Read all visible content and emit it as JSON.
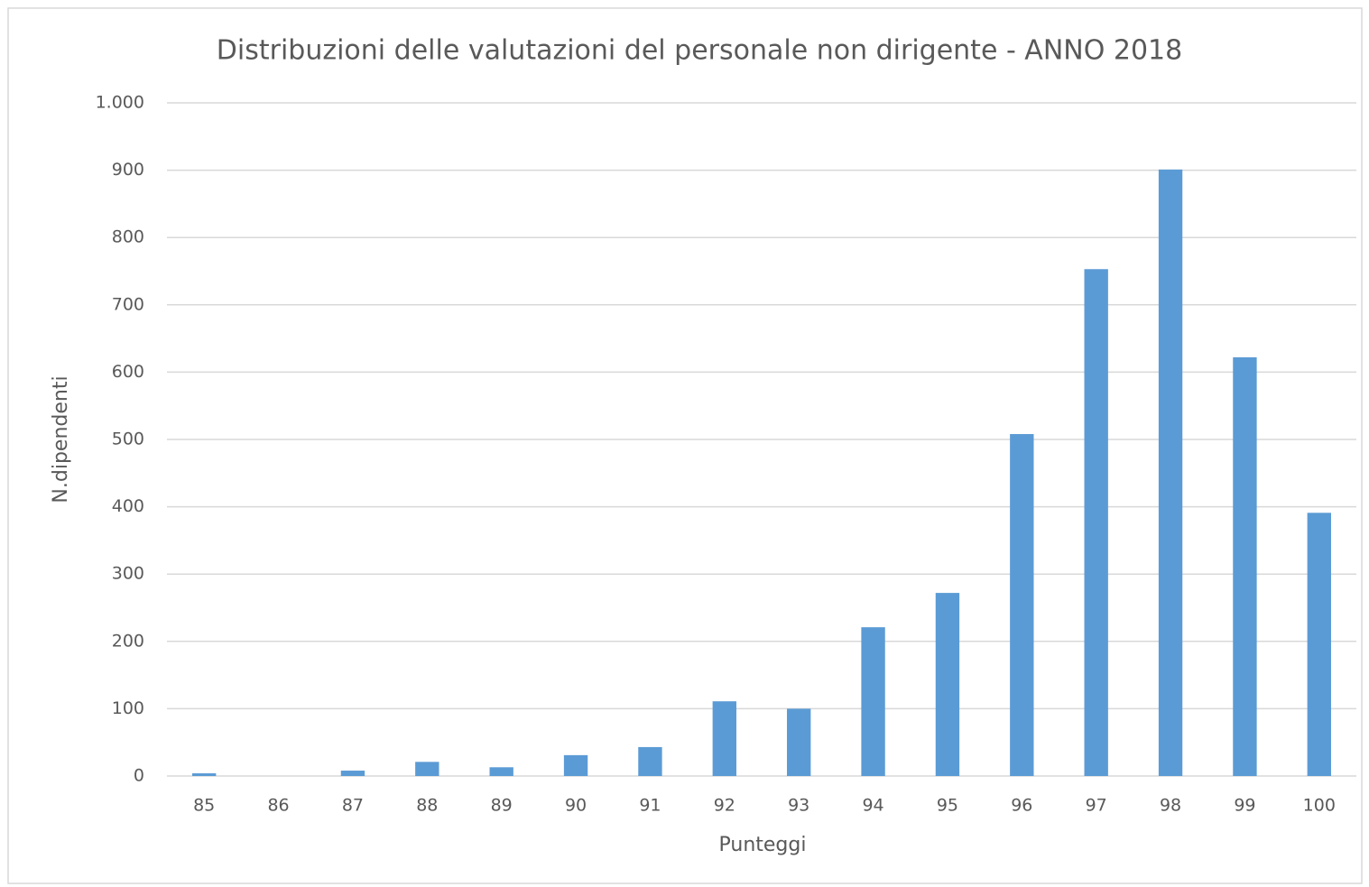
{
  "chart_data": {
    "type": "bar",
    "title": "Distribuzioni delle valutazioni del personale non dirigente - ANNO 2018",
    "x_label": "Punteggi",
    "y_label": "N.dipendenti",
    "categories": [
      "85",
      "86",
      "87",
      "88",
      "89",
      "90",
      "91",
      "92",
      "93",
      "94",
      "95",
      "96",
      "97",
      "98",
      "99",
      "100"
    ],
    "values": [
      4,
      0,
      8,
      21,
      13,
      31,
      43,
      111,
      100,
      221,
      272,
      508,
      753,
      901,
      622,
      391
    ],
    "color": "#5b9bd5",
    "ylim": [
      0,
      1000
    ],
    "yticks": [
      0,
      100,
      200,
      300,
      400,
      500,
      600,
      700,
      800,
      900,
      {
        "value": 1000,
        "label": "1.000"
      }
    ],
    "grid": true
  }
}
